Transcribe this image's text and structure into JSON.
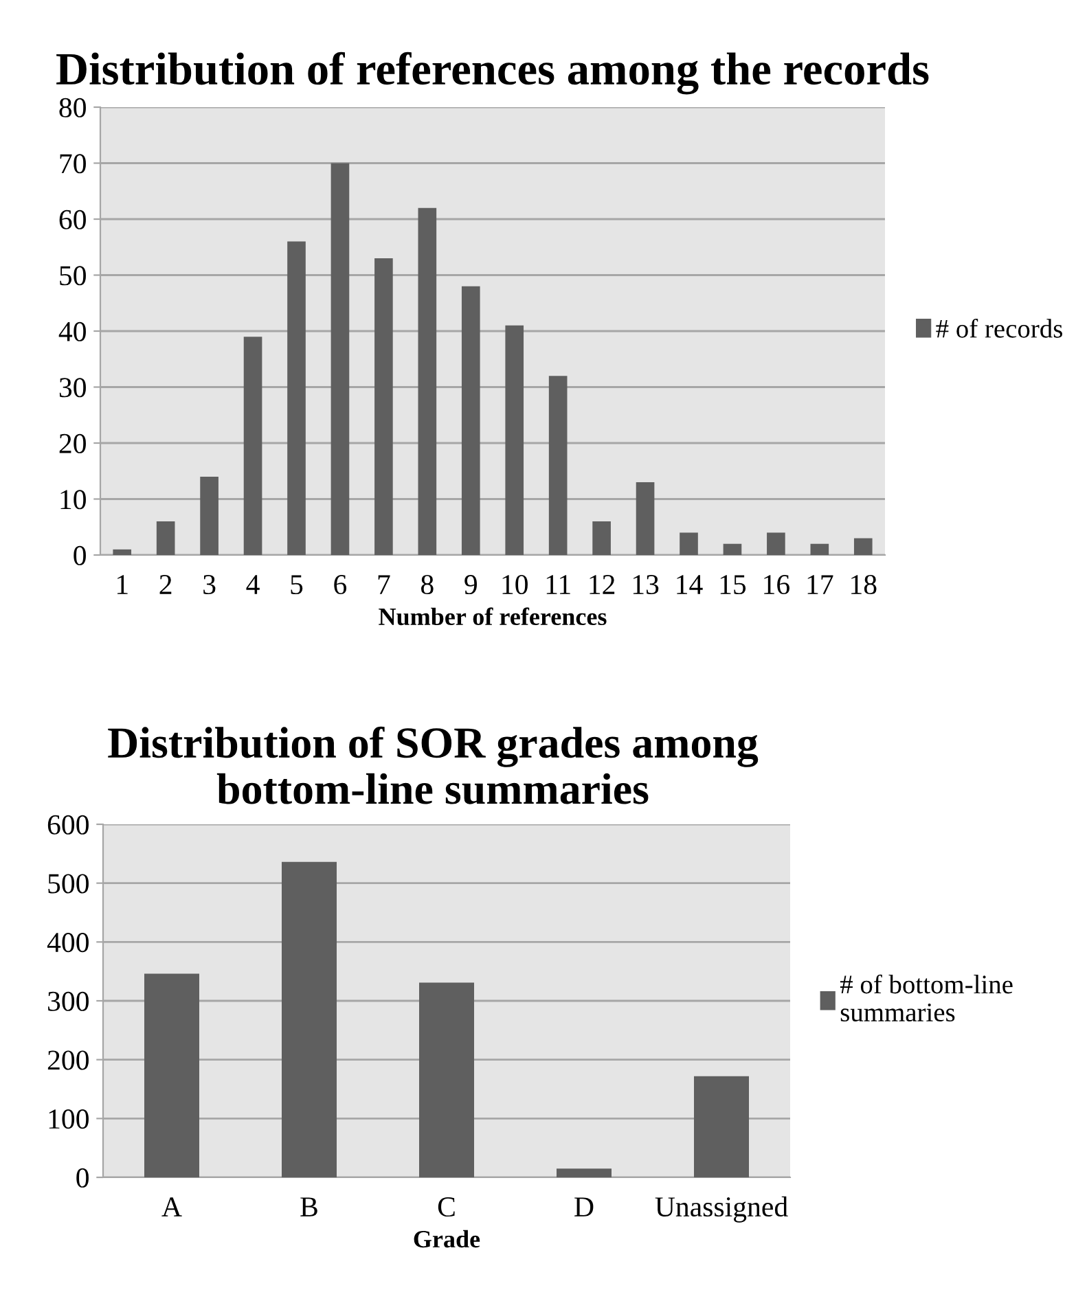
{
  "chart_data": [
    {
      "type": "bar",
      "title": "Distribution of references among the records",
      "xlabel": "Number of references",
      "categories": [
        "1",
        "2",
        "3",
        "4",
        "5",
        "6",
        "7",
        "8",
        "9",
        "10",
        "11",
        "12",
        "13",
        "14",
        "15",
        "16",
        "17",
        "18"
      ],
      "series": [
        {
          "name": "# of records",
          "color": "#5f5f5f",
          "values": [
            1,
            6,
            14,
            39,
            56,
            70,
            53,
            62,
            48,
            41,
            32,
            6,
            13,
            4,
            2,
            4,
            2,
            3
          ]
        }
      ],
      "ylim": [
        0,
        80
      ],
      "yticks": [
        0,
        10,
        20,
        30,
        40,
        50,
        60,
        70,
        80
      ],
      "grid": "y",
      "legend": "right"
    },
    {
      "type": "bar",
      "title": "Distribution of SOR grades among bottom-line summaries",
      "xlabel": "Grade",
      "categories": [
        "A",
        "B",
        "C",
        "D",
        "Unassigned"
      ],
      "series": [
        {
          "name": "# of bottom-line summaries",
          "color": "#5f5f5f",
          "values": [
            346,
            536,
            331,
            15,
            172
          ]
        }
      ],
      "ylim": [
        0,
        600
      ],
      "yticks": [
        0,
        100,
        200,
        300,
        400,
        500,
        600
      ],
      "grid": "y",
      "legend": "right"
    }
  ]
}
